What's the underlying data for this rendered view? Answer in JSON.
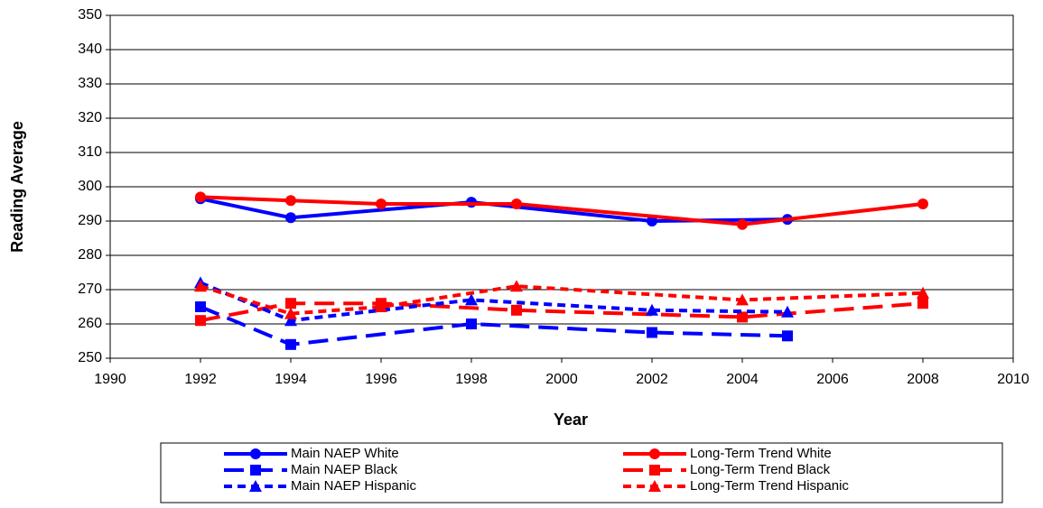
{
  "chart_data": {
    "type": "line",
    "x_label": "Year",
    "y_label": "Reading Average",
    "xlim": [
      1990,
      2010
    ],
    "xticks": [
      1990,
      1992,
      1994,
      1996,
      1998,
      2000,
      2002,
      2004,
      2006,
      2008,
      2010
    ],
    "ylim": [
      250,
      350
    ],
    "yticks": [
      250,
      260,
      270,
      280,
      290,
      300,
      310,
      320,
      330,
      340,
      350
    ],
    "grid": true,
    "legend": "bottom",
    "series": [
      {
        "name": "Main NAEP White",
        "color": "#0000ff",
        "marker": "circle",
        "dash": "solid",
        "x": [
          1992,
          1994,
          1998,
          2002,
          2005
        ],
        "values": [
          296.5,
          291,
          295.5,
          290,
          290.5
        ]
      },
      {
        "name": "Long-Term Trend White",
        "color": "#ff0000",
        "marker": "circle",
        "dash": "solid",
        "x": [
          1992,
          1994,
          1996,
          1999,
          2004,
          2008
        ],
        "values": [
          297,
          296,
          295,
          295,
          289,
          295
        ]
      },
      {
        "name": "Main NAEP Black",
        "color": "#0000ff",
        "marker": "square",
        "dash": "long",
        "x": [
          1992,
          1994,
          1998,
          2002,
          2005
        ],
        "values": [
          265,
          254,
          260,
          257.5,
          256.5
        ]
      },
      {
        "name": "Long-Term Trend Black",
        "color": "#ff0000",
        "marker": "square",
        "dash": "long",
        "x": [
          1992,
          1994,
          1996,
          1999,
          2004,
          2008
        ],
        "values": [
          261,
          266,
          266,
          264,
          262,
          266
        ]
      },
      {
        "name": "Main NAEP Hispanic",
        "color": "#0000ff",
        "marker": "triangle",
        "dash": "short",
        "x": [
          1992,
          1994,
          1998,
          2002,
          2005
        ],
        "values": [
          272,
          261,
          267,
          264,
          263.5
        ]
      },
      {
        "name": "Long-Term Trend Hispanic",
        "color": "#ff0000",
        "marker": "triangle",
        "dash": "short",
        "x": [
          1992,
          1994,
          1996,
          1999,
          2004,
          2008
        ],
        "values": [
          271,
          263,
          265,
          271,
          267,
          269
        ]
      }
    ]
  }
}
